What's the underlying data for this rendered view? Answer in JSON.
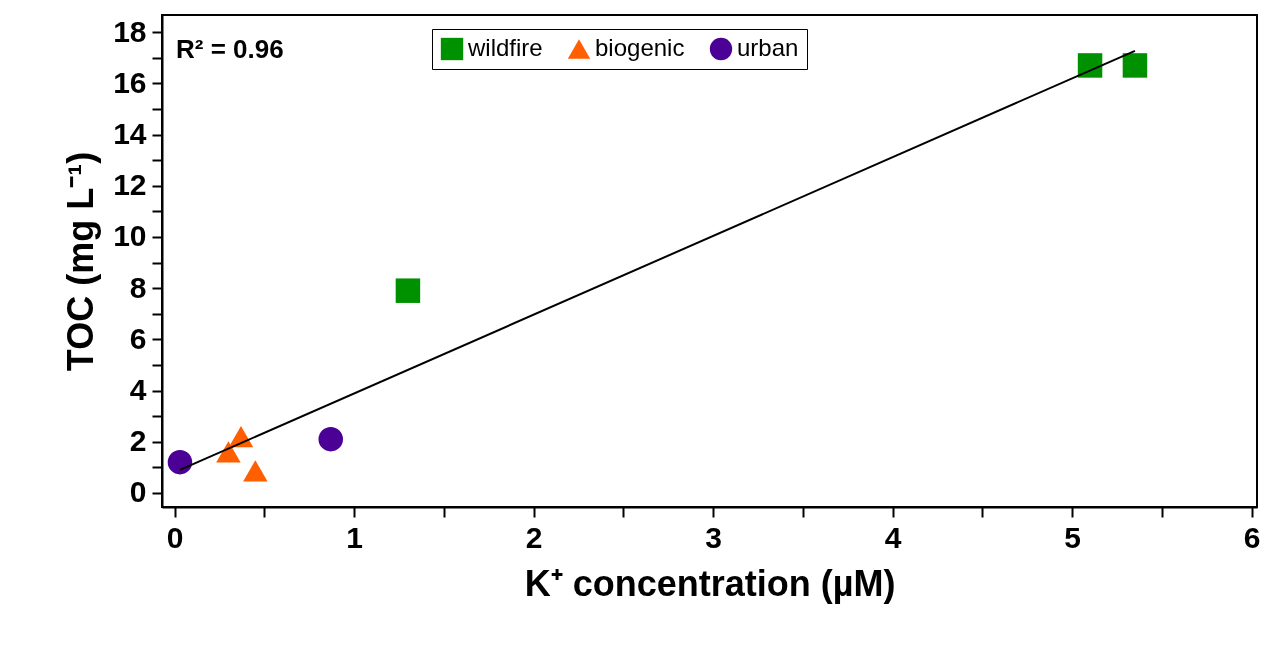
{
  "chart_data": {
    "type": "scatter",
    "xlabel": "K⁺ concentration (µM)",
    "ylabel": "TOC (mg L⁻¹)",
    "annotations": [
      "R² = 0.96"
    ],
    "xlim": [
      -0.07,
      6.03
    ],
    "ylim": [
      -0.55,
      18.67
    ],
    "xticks": [
      0,
      {
        "value": 0.5,
        "label": null
      },
      1,
      {
        "value": 1.5,
        "label": null
      },
      2,
      {
        "value": 2.5,
        "label": null
      },
      3,
      {
        "value": 3.5,
        "label": null
      },
      4,
      {
        "value": 4.5,
        "label": null
      },
      5,
      {
        "value": 5.5,
        "label": null
      },
      6
    ],
    "yticks": [
      0,
      {
        "value": 1,
        "label": null
      },
      2,
      {
        "value": 3,
        "label": null
      },
      4,
      {
        "value": 5,
        "label": null
      },
      6,
      {
        "value": 7,
        "label": null
      },
      8,
      {
        "value": 9,
        "label": null
      },
      10,
      {
        "value": 11,
        "label": null
      },
      12,
      {
        "value": 13,
        "label": null
      },
      14,
      {
        "value": 15,
        "label": null
      },
      16,
      {
        "value": 17,
        "label": null
      },
      18
    ],
    "grid": false,
    "legend": "top",
    "series": [
      {
        "name": "wildfire",
        "color": "#009100",
        "marker": "square",
        "x": [
          5.1,
          5.35,
          1.3
        ],
        "values": [
          16.7,
          16.7,
          7.9
        ]
      },
      {
        "name": "biogenic",
        "color": "#ff5f00",
        "marker": "triangle",
        "x": [
          0.37,
          0.3,
          0.45
        ],
        "values": [
          2.2,
          1.6,
          0.86
        ]
      },
      {
        "name": "urban",
        "color": "#4b0096",
        "marker": "circle",
        "x": [
          0.03,
          0.87
        ],
        "values": [
          1.2,
          2.1
        ]
      },
      {
        "type": "line",
        "color": "#000000",
        "marker": "none",
        "x": [
          0.03,
          5.35
        ],
        "values": [
          0.9,
          17.27
        ]
      }
    ]
  }
}
